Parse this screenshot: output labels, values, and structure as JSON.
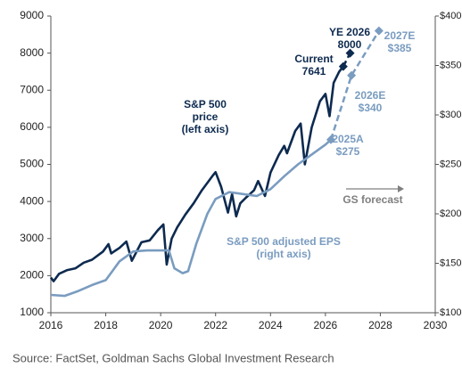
{
  "chart_data": {
    "type": "line",
    "xlim": [
      2016,
      2030
    ],
    "xticks": [
      2016,
      2018,
      2020,
      2022,
      2024,
      2026,
      2028,
      2030
    ],
    "ylim": [
      1000,
      9000
    ],
    "yticks": [
      1000,
      2000,
      3000,
      4000,
      5000,
      6000,
      7000,
      8000,
      9000
    ],
    "y2lim": [
      100,
      400
    ],
    "y2ticks": [
      {
        "value": 100,
        "label": "$100"
      },
      {
        "value": 150,
        "label": "$150"
      },
      {
        "value": 200,
        "label": "$200"
      },
      {
        "value": 250,
        "label": "$250"
      },
      {
        "value": 300,
        "label": "$300"
      },
      {
        "value": 350,
        "label": "$350"
      },
      {
        "value": 400,
        "label": "$400"
      }
    ],
    "series": [
      {
        "color": "#0d2a4f",
        "axis": "y",
        "dashed": false,
        "markers": false,
        "x": [
          2016.0,
          2016.1,
          2016.3,
          2016.6,
          2016.9,
          2017.2,
          2017.5,
          2017.9,
          2018.1,
          2018.2,
          2018.5,
          2018.75,
          2018.95,
          2019.3,
          2019.6,
          2019.9,
          2020.1,
          2020.22,
          2020.4,
          2020.6,
          2020.9,
          2021.2,
          2021.5,
          2021.9,
          2022.0,
          2022.2,
          2022.45,
          2022.6,
          2022.75,
          2022.9,
          2023.1,
          2023.4,
          2023.55,
          2023.8,
          2024.0,
          2024.3,
          2024.5,
          2024.6,
          2024.9,
          2025.1,
          2025.25,
          2025.5,
          2025.8,
          2026.0,
          2026.15,
          2026.3,
          2026.5,
          2026.65
        ],
        "values": [
          1950,
          1850,
          2050,
          2150,
          2200,
          2350,
          2430,
          2650,
          2850,
          2600,
          2750,
          2920,
          2400,
          2900,
          2950,
          3230,
          3380,
          2300,
          3000,
          3300,
          3650,
          3950,
          4300,
          4700,
          4790,
          4400,
          3700,
          4200,
          3600,
          3950,
          4100,
          4300,
          4550,
          4150,
          4780,
          5250,
          5500,
          5300,
          5900,
          6100,
          5000,
          6000,
          6700,
          6900,
          6300,
          7200,
          7500,
          7641
        ]
      },
      {
        "color": "#0d2a4f",
        "axis": "y",
        "dashed": true,
        "markers": true,
        "x": [
          2026.65,
          2026.9
        ],
        "values": [
          7641,
          8000
        ]
      },
      {
        "color": "#7a9cc0",
        "axis": "y2",
        "dashed": false,
        "markers": false,
        "x": [
          2016.0,
          2016.5,
          2017.0,
          2017.5,
          2018.0,
          2018.5,
          2019.0,
          2019.5,
          2020.0,
          2020.3,
          2020.5,
          2020.8,
          2021.0,
          2021.3,
          2021.7,
          2022.0,
          2022.5,
          2023.0,
          2023.5,
          2024.0,
          2024.5,
          2025.0,
          2025.5,
          2026.0,
          2026.2
        ],
        "values": [
          118,
          117,
          122,
          128,
          133,
          152,
          162,
          163,
          163,
          163,
          145,
          140,
          142,
          170,
          200,
          215,
          222,
          220,
          218,
          225,
          238,
          250,
          260,
          270,
          275
        ]
      },
      {
        "color": "#7a9cc0",
        "axis": "y2",
        "dashed": true,
        "markers": true,
        "x": [
          2026.2,
          2026.95,
          2027.95
        ],
        "values": [
          275,
          340,
          385
        ]
      }
    ],
    "annotations": [
      {
        "lines": [
          "S&P 500",
          "price",
          "(left axis)"
        ],
        "color": "#0d2a4f"
      },
      {
        "lines": [
          "S&P 500 adjusted EPS",
          "(right axis)"
        ],
        "color": "#7a9cc0"
      },
      {
        "lines": [
          "Current",
          "7641"
        ],
        "color": "#0d2a4f"
      },
      {
        "lines": [
          "YE 2026",
          "8000"
        ],
        "color": "#0d2a4f"
      },
      {
        "lines": [
          "2025A",
          "$275"
        ],
        "color": "#7a9cc0"
      },
      {
        "lines": [
          "2026E",
          "$340"
        ],
        "color": "#7a9cc0"
      },
      {
        "lines": [
          "2027E",
          "$385"
        ],
        "color": "#7a9cc0"
      },
      {
        "lines": [
          "GS forecast"
        ],
        "color": "#7f7f7f"
      }
    ],
    "source": "Source: FactSet, Goldman Sachs Global Investment Research"
  }
}
